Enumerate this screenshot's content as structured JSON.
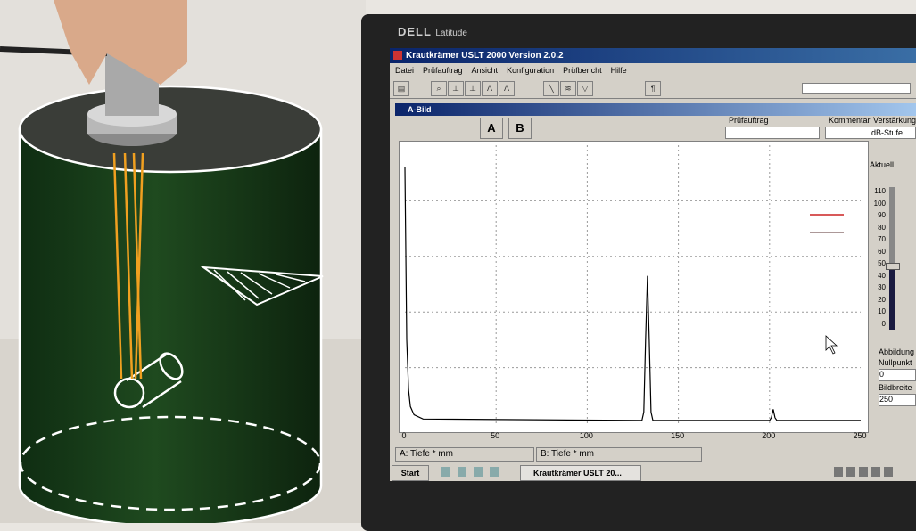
{
  "laptop": {
    "brand": "DELL",
    "model": "Latitude"
  },
  "window": {
    "title": "Krautkrämer USLT 2000  Version 2.0.2"
  },
  "menu": [
    "Datei",
    "Prüfauftrag",
    "Ansicht",
    "Konfiguration",
    "Prüfbericht",
    "Hilfe"
  ],
  "subwindow": {
    "title": "A-Bild"
  },
  "gates": {
    "a": "A",
    "b": "B"
  },
  "fields": {
    "pruefauftrag_label": "Prüfauftrag",
    "kommentar_label": "Kommentar"
  },
  "panel": {
    "verstaerkung": "Verstärkung",
    "db_stufe": "dB-Stufe",
    "aktuell": "Aktuell",
    "abbildung": "Abbildung",
    "nullpunkt": "Nullpunkt",
    "nullpunkt_value": "0",
    "bildbreite": "Bildbreite",
    "bildbreite_value": "250",
    "scale": [
      "110",
      "100",
      "90",
      "80",
      "70",
      "60",
      "50",
      "40",
      "30",
      "20",
      "10",
      "0"
    ]
  },
  "readouts": {
    "a": "A: Tiefe * mm",
    "b": "B: Tiefe * mm"
  },
  "taskbar": {
    "start": "Start",
    "task": "Krautkrämer USLT 20..."
  },
  "chart_data": {
    "type": "line",
    "x_ticks": [
      "0",
      "50",
      "100",
      "150",
      "200",
      "250"
    ],
    "xlim": [
      0,
      250
    ],
    "ylim": [
      0,
      100
    ],
    "grid": true,
    "series": [
      {
        "values": [
          [
            0,
            92
          ],
          [
            1,
            30
          ],
          [
            2,
            12
          ],
          [
            3,
            6
          ],
          [
            5,
            3
          ],
          [
            10,
            1.5
          ],
          [
            130,
            1
          ],
          [
            131,
            4
          ],
          [
            132,
            30
          ],
          [
            133,
            53
          ],
          [
            134,
            30
          ],
          [
            135,
            4
          ],
          [
            136,
            1
          ],
          [
            200,
            1
          ],
          [
            201,
            2
          ],
          [
            202,
            5
          ],
          [
            203,
            2
          ],
          [
            204,
            1
          ],
          [
            250,
            1
          ]
        ]
      }
    ]
  },
  "colors": {
    "trace": "#000000",
    "grid": "#9a9a9a",
    "accent_red": "#cc2222",
    "titlebar": "#0a246a"
  }
}
